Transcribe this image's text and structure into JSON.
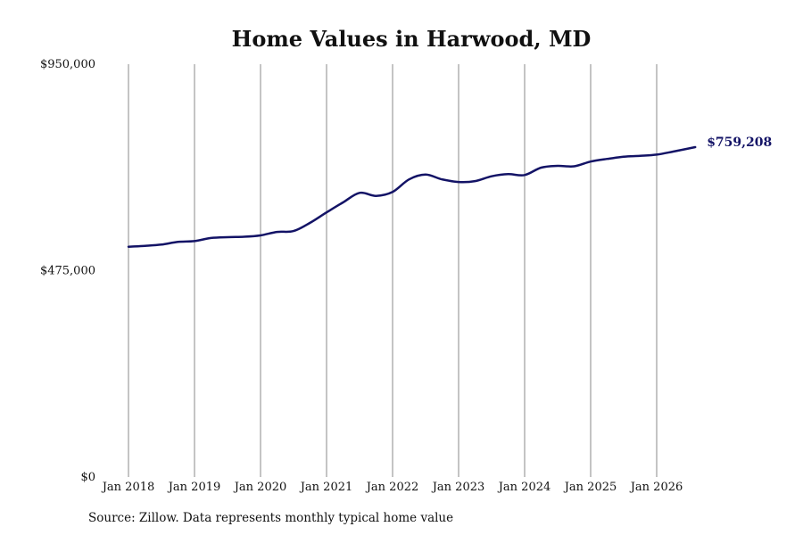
{
  "colors": {
    "line": "#131366",
    "grid": "#8a8a8a",
    "text": "#111111",
    "background": "#ffffff"
  },
  "source_note": "Source: Zillow. Data represents monthly typical home value",
  "chart_data": {
    "type": "line",
    "title": "Home Values in Harwood, MD",
    "xlabel": "",
    "ylabel": "",
    "ylim": [
      0,
      950000
    ],
    "yticks": [
      0,
      475000,
      950000
    ],
    "ytick_labels": [
      "$0",
      "$475,000",
      "$950,000"
    ],
    "xticks": [
      "2018-01",
      "2019-01",
      "2020-01",
      "2021-01",
      "2022-01",
      "2023-01",
      "2024-01",
      "2025-01",
      "2026-01"
    ],
    "xtick_labels": [
      "Jan 2018",
      "Jan 2019",
      "Jan 2020",
      "Jan 2021",
      "Jan 2022",
      "Jan 2023",
      "Jan 2024",
      "Jan 2025",
      "Jan 2026"
    ],
    "xlim": [
      "2018-01",
      "2026-08"
    ],
    "grid": "vertical",
    "legend": "none",
    "end_label": "$759,208",
    "series": [
      {
        "x": [
          "2018-01",
          "2018-04",
          "2018-07",
          "2018-10",
          "2019-01",
          "2019-04",
          "2019-07",
          "2019-10",
          "2020-01",
          "2020-04",
          "2020-07",
          "2020-10",
          "2021-01",
          "2021-04",
          "2021-07",
          "2021-10",
          "2022-01",
          "2022-04",
          "2022-07",
          "2022-10",
          "2023-01",
          "2023-04",
          "2023-07",
          "2023-10",
          "2024-01",
          "2024-04",
          "2024-07",
          "2024-10",
          "2025-01",
          "2025-04",
          "2025-07",
          "2025-10",
          "2026-01",
          "2026-04",
          "2026-08"
        ],
        "values": [
          530000,
          532000,
          535000,
          541000,
          543000,
          550000,
          552000,
          553000,
          556000,
          564000,
          566000,
          585000,
          609000,
          632000,
          654000,
          647000,
          656000,
          685000,
          696000,
          685000,
          679000,
          681000,
          692000,
          697000,
          695000,
          712000,
          716000,
          715000,
          726000,
          732000,
          737000,
          739000,
          742000,
          749000,
          759208
        ]
      }
    ]
  }
}
